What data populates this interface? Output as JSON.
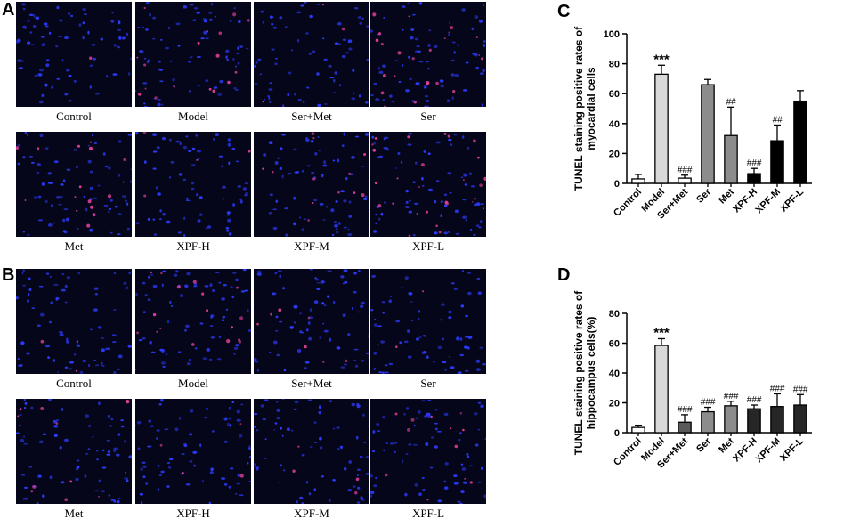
{
  "panels": {
    "A": {
      "letter": "A",
      "row1": [
        "Control",
        "Model",
        "Ser+Met",
        "Ser"
      ],
      "row2": [
        "Met",
        "XPF-H",
        "XPF-M",
        "XPF-L"
      ]
    },
    "B": {
      "letter": "B",
      "row1": [
        "Control",
        "Model",
        "Ser+Met",
        "Ser"
      ],
      "row2": [
        "Met",
        "XPF-H",
        "XPF-M",
        "XPF-L"
      ]
    }
  },
  "colors": {
    "micro_background": "#05061a",
    "nucleus_blue": "#2d3cff",
    "apoptotic_pink": "#e0409a",
    "bar_stroke": "#000000"
  },
  "chart_data": [
    {
      "panel": "C",
      "type": "bar",
      "ylabel": "TUNEL staining positive rates of myocardial cells",
      "ylim": [
        0,
        100
      ],
      "yticks": [
        0,
        20,
        40,
        60,
        80,
        100
      ],
      "categories": [
        "Control",
        "Model",
        "Ser+Met",
        "Ser",
        "Met",
        "XPF-H",
        "XPF-M",
        "XPF-L"
      ],
      "values": [
        3,
        73,
        3.5,
        66,
        32,
        6.5,
        28.5,
        55
      ],
      "errors": [
        3,
        6,
        2,
        3.5,
        19,
        3.5,
        10.5,
        7
      ],
      "annotations": [
        "",
        "***",
        "###",
        "",
        "##",
        "###",
        "##",
        ""
      ],
      "bar_colors": [
        "#ffffff",
        "#d9d9d9",
        "#ffffff",
        "#8c8c8c",
        "#8c8c8c",
        "#000000",
        "#000000",
        "#000000"
      ]
    },
    {
      "panel": "D",
      "type": "bar",
      "ylabel": "TUNEL staining positive rates of hippocampus cells(%)",
      "ylim": [
        0,
        80
      ],
      "yticks": [
        0,
        20,
        40,
        60,
        80
      ],
      "categories": [
        "Control",
        "Model",
        "Ser+Met",
        "Ser",
        "Met",
        "XPF-H",
        "XPF-M",
        "XPF-L"
      ],
      "values": [
        3.5,
        58.5,
        7,
        14,
        18,
        16,
        17.5,
        18.5
      ],
      "errors": [
        1.5,
        4.5,
        5,
        3,
        3,
        2.5,
        8.5,
        7
      ],
      "annotations": [
        "",
        "***",
        "###",
        "###",
        "###",
        "###",
        "###",
        "###"
      ],
      "bar_colors": [
        "#ffffff",
        "#d9d9d9",
        "#595959",
        "#8c8c8c",
        "#8c8c8c",
        "#262626",
        "#262626",
        "#262626"
      ]
    }
  ]
}
